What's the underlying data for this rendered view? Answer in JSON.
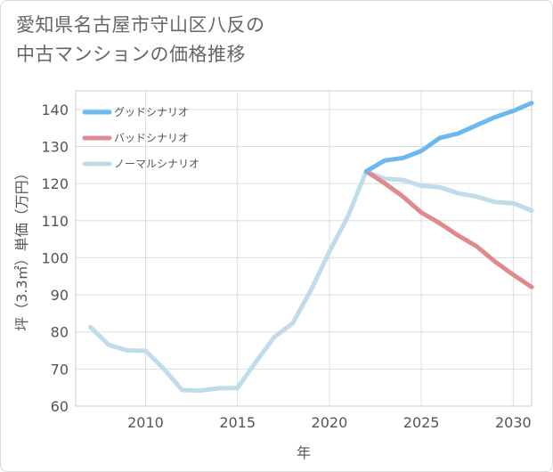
{
  "title": {
    "line1": "愛知県名古屋市守山区八反の",
    "line2": "中古マンションの価格推移"
  },
  "chart_data": {
    "type": "line",
    "xlabel": "年",
    "ylabel": "坪（3.3㎡）単価（万円）",
    "xlim": [
      2006.2,
      2031
    ],
    "ylim": [
      60,
      145
    ],
    "xticks": [
      2010,
      2015,
      2020,
      2025,
      2030
    ],
    "yticks": [
      60,
      70,
      80,
      90,
      100,
      110,
      120,
      130,
      140
    ],
    "grid": true,
    "legend_position": "top-left",
    "series": [
      {
        "name": "グッドシナリオ",
        "color": "#6cb8ef",
        "points": [
          [
            2022,
            123.3
          ],
          [
            2023,
            126.2
          ],
          [
            2024,
            126.9
          ],
          [
            2025,
            128.8
          ],
          [
            2026,
            132.3
          ],
          [
            2027,
            133.5
          ],
          [
            2028,
            135.7
          ],
          [
            2029,
            137.9
          ],
          [
            2030,
            139.6
          ],
          [
            2031,
            141.7
          ]
        ]
      },
      {
        "name": "バッドシナリオ",
        "color": "#e08a90",
        "points": [
          [
            2022,
            123.3
          ],
          [
            2023,
            120.1
          ],
          [
            2024,
            116.5
          ],
          [
            2025,
            112.2
          ],
          [
            2026,
            109.3
          ],
          [
            2027,
            106.0
          ],
          [
            2028,
            103.1
          ],
          [
            2029,
            99.0
          ],
          [
            2030,
            95.4
          ],
          [
            2031,
            92.1
          ]
        ]
      },
      {
        "name": "ノーマルシナリオ",
        "color": "#c0dcea",
        "points": [
          [
            2007,
            81.3
          ],
          [
            2008,
            76.5
          ],
          [
            2009,
            75.0
          ],
          [
            2010,
            74.9
          ],
          [
            2011,
            70.0
          ],
          [
            2012,
            64.3
          ],
          [
            2013,
            64.2
          ],
          [
            2014,
            64.8
          ],
          [
            2015,
            64.9
          ],
          [
            2016,
            71.9
          ],
          [
            2017,
            78.6
          ],
          [
            2018,
            82.3
          ],
          [
            2019,
            91.3
          ],
          [
            2020,
            101.7
          ],
          [
            2021,
            111.0
          ],
          [
            2022,
            123.3
          ],
          [
            2023,
            121.3
          ],
          [
            2024,
            121.0
          ],
          [
            2025,
            119.4
          ],
          [
            2026,
            119.0
          ],
          [
            2027,
            117.4
          ],
          [
            2028,
            116.5
          ],
          [
            2029,
            115.0
          ],
          [
            2030,
            114.7
          ],
          [
            2031,
            112.7
          ]
        ]
      }
    ]
  }
}
